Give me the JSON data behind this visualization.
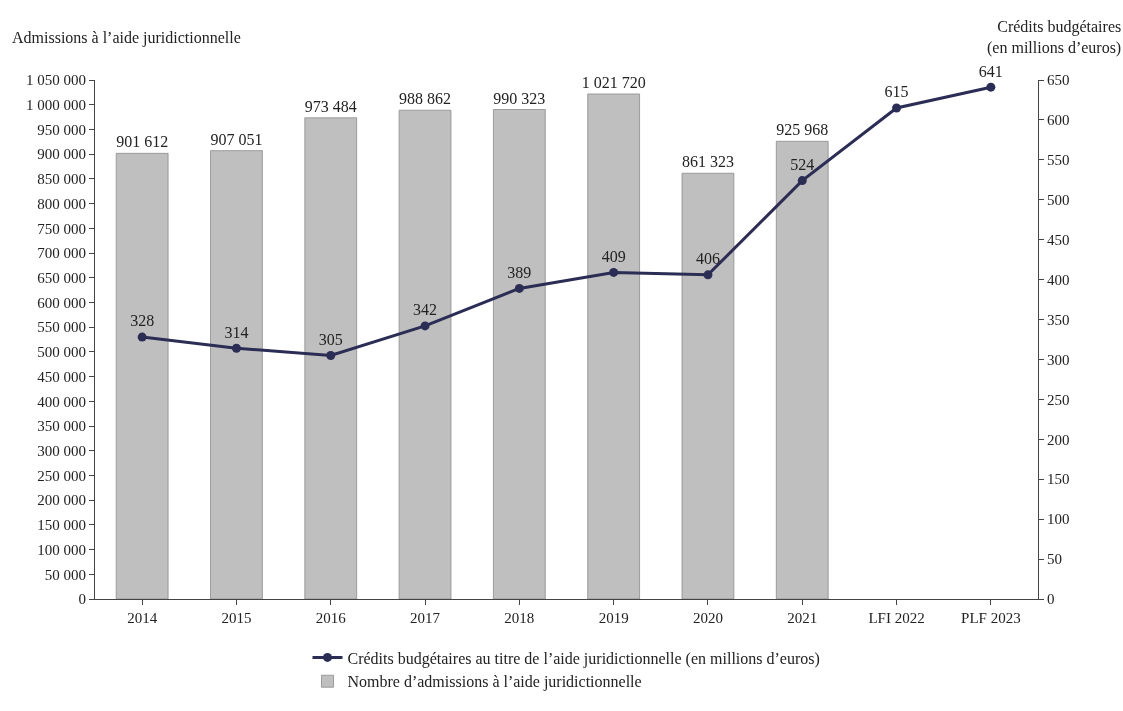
{
  "chart_data": {
    "type": "bar",
    "ylabel": "Admissions à l’aide juridictionnelle",
    "y2label": "Crédits budgétaires\n(en millions d’euros)",
    "categories": [
      "2014",
      "2015",
      "2016",
      "2017",
      "2018",
      "2019",
      "2020",
      "2021",
      "LFI 2022",
      "PLF 2023"
    ],
    "series": [
      {
        "name": "Crédits budgétaires au titre de l’aide juridictionnelle (en millions d’euros)",
        "type": "line",
        "axis": "y2",
        "color": "#2b2d55",
        "marker": "circle",
        "values": [
          328,
          314,
          305,
          342,
          389,
          409,
          406,
          524,
          615,
          641
        ],
        "value_labels": [
          "328",
          "314",
          "305",
          "342",
          "389",
          "409",
          "406",
          "524",
          "615",
          "641"
        ]
      },
      {
        "name": "Nombre d’admissions à l’aide juridictionnelle",
        "color": "#bfbfbf",
        "values": [
          901612,
          907051,
          973484,
          988862,
          990323,
          1021720,
          861323,
          925968,
          null,
          null
        ],
        "value_labels": [
          "901 612",
          "907 051",
          "973 484",
          "988 862",
          "990 323",
          "1 021 720",
          "861 323",
          "925 968",
          null,
          null
        ]
      }
    ],
    "ylim": [
      0,
      1050000
    ],
    "yticks": [
      0,
      {
        "value": 50000,
        "label": "50 000"
      },
      {
        "value": 100000,
        "label": "100 000"
      },
      {
        "value": 150000,
        "label": "150 000"
      },
      {
        "value": 200000,
        "label": "200 000"
      },
      {
        "value": 250000,
        "label": "250 000"
      },
      {
        "value": 300000,
        "label": "300 000"
      },
      {
        "value": 350000,
        "label": "350 000"
      },
      {
        "value": 400000,
        "label": "400 000"
      },
      {
        "value": 450000,
        "label": "450 000"
      },
      {
        "value": 500000,
        "label": "500 000"
      },
      {
        "value": 550000,
        "label": "550 000"
      },
      {
        "value": 600000,
        "label": "600 000"
      },
      {
        "value": 650000,
        "label": "650 000"
      },
      {
        "value": 700000,
        "label": "700 000"
      },
      {
        "value": 750000,
        "label": "750 000"
      },
      {
        "value": 800000,
        "label": "800 000"
      },
      {
        "value": 850000,
        "label": "850 000"
      },
      {
        "value": 900000,
        "label": "900 000"
      },
      {
        "value": 950000,
        "label": "950 000"
      },
      {
        "value": 1000000,
        "label": "1 000 000"
      },
      {
        "value": 1050000,
        "label": "1 050 000"
      }
    ],
    "y2lim": [
      0,
      650
    ],
    "y2ticks": [
      0,
      50,
      100,
      150,
      200,
      250,
      300,
      350,
      400,
      450,
      500,
      550,
      600,
      650
    ],
    "legend": "bottom"
  }
}
